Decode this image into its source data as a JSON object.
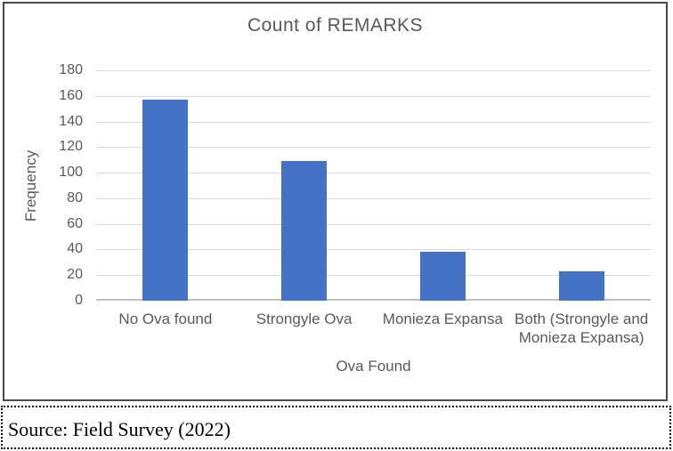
{
  "chart_data": {
    "type": "bar",
    "title": "Count of REMARKS",
    "categories": [
      "No Ova found",
      "Strongyle Ova",
      "Monieza Expansa",
      "Both (Strongyle and Monieza Expansa)"
    ],
    "values": [
      157,
      109,
      38,
      23
    ],
    "xlabel": "Ova Found",
    "ylabel": "Frequency",
    "ylim": [
      0,
      180
    ],
    "ytick_step": 20,
    "ytick_labels": [
      "0",
      "20",
      "40",
      "60",
      "80",
      "100",
      "120",
      "140",
      "160",
      "180"
    ],
    "grid": true,
    "legend": "none",
    "bar_color": "#4472c4",
    "gridline_color": "#d9d9d9",
    "axis_line_color": "#bfbfbf",
    "text_color": "#595959"
  },
  "source_note": {
    "text": "Source: Field Survey (2022)"
  }
}
